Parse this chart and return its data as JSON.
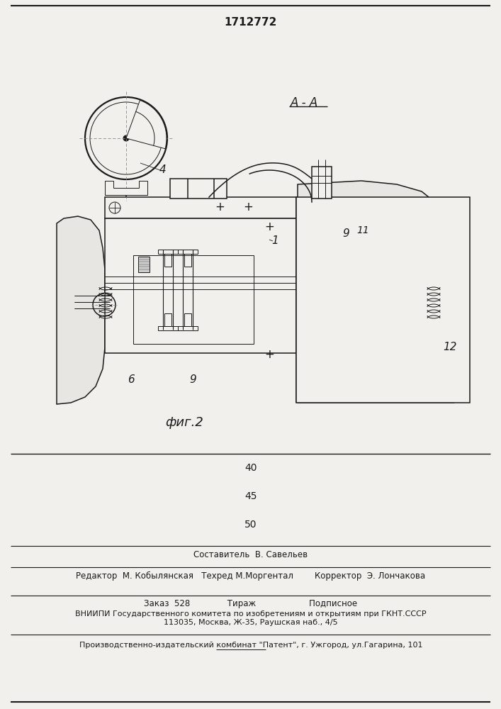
{
  "patent_number": "1712772",
  "fig_label": "фиг.2",
  "section_label": "А - А",
  "bg_color": "#f2f0ed",
  "line_color": "#1a1a1a",
  "page_number": "40",
  "page_number2": "45",
  "page_number3": "50",
  "editor_line": "Редактор  М. Кобылянская   Техред М.Моргентал        Корректор  Э. Лончакова",
  "composer_line": "Составитель  В. Савельев",
  "order_line": "Заказ  528              Тираж                    Подписное",
  "vniiipi_line": "ВНИИПИ Государственного комитета по изобретениям и открытиям при ГКНТ.СССР",
  "address_line": "113035, Москва, Ж-35, Раушская наб., 4/5",
  "publisher_line": "Производственно-издательский комбинат \"Патент\", г. Ужгород, ул.Гагарина, 101"
}
